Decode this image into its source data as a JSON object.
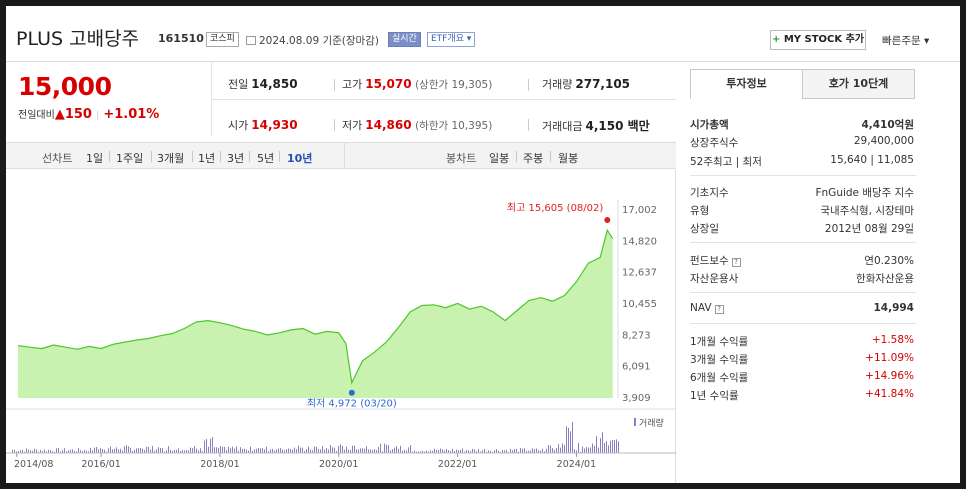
{
  "header": {
    "title": "PLUS 고배당주",
    "code": "161510",
    "market_tag": "코스피",
    "date": "2024.08.09",
    "basis": "기준(장마감)",
    "realtime_tag": "실시간",
    "etf_tag": "ETF개요 ▾",
    "mystock_label": "MY STOCK 추가",
    "quick_order": "빠른주문 ▾"
  },
  "price": {
    "current": "15,000",
    "change_label": "전일대비",
    "change_arrow": "▲",
    "change_value": "150",
    "change_pct": "+1.01%"
  },
  "quotes": {
    "prev_close_label": "전일",
    "prev_close": "14,850",
    "high_label": "고가",
    "high": "15,070",
    "upper_limit": "(상한가 19,305)",
    "volume_label": "거래량",
    "volume": "277,105",
    "open_label": "시가",
    "open": "14,930",
    "low_label": "저가",
    "low": "14,860",
    "lower_limit": "(하한가 10,395)",
    "turnover_label": "거래대금",
    "turnover": "4,150 백만"
  },
  "periods": {
    "line_label": "선차트",
    "line_items": [
      "1일",
      "1주일",
      "3개월",
      "1년",
      "3년",
      "5년",
      "10년"
    ],
    "active": "10년",
    "candle_label": "봉차트",
    "candle_items": [
      "일봉",
      "주봉",
      "월봉"
    ]
  },
  "chart_data": {
    "type": "area",
    "series": [
      {
        "values": [
          [
            2014.6,
            7550
          ],
          [
            2014.8,
            7450
          ],
          [
            2015.0,
            7350
          ],
          [
            2015.2,
            7600
          ],
          [
            2015.4,
            7450
          ],
          [
            2015.6,
            7300
          ],
          [
            2015.8,
            7500
          ],
          [
            2016.0,
            7350
          ],
          [
            2016.2,
            7650
          ],
          [
            2016.4,
            7800
          ],
          [
            2016.6,
            7950
          ],
          [
            2016.8,
            8050
          ],
          [
            2017.0,
            8250
          ],
          [
            2017.2,
            8400
          ],
          [
            2017.4,
            8750
          ],
          [
            2017.6,
            9200
          ],
          [
            2017.8,
            9300
          ],
          [
            2018.0,
            9150
          ],
          [
            2018.2,
            8950
          ],
          [
            2018.4,
            8700
          ],
          [
            2018.6,
            8550
          ],
          [
            2018.8,
            8300
          ],
          [
            2019.0,
            8450
          ],
          [
            2019.2,
            8650
          ],
          [
            2019.4,
            8750
          ],
          [
            2019.6,
            8350
          ],
          [
            2019.8,
            8550
          ],
          [
            2020.0,
            8450
          ],
          [
            2020.12,
            7700
          ],
          [
            2020.22,
            4972
          ],
          [
            2020.4,
            6500
          ],
          [
            2020.6,
            7100
          ],
          [
            2020.8,
            7800
          ],
          [
            2021.0,
            8800
          ],
          [
            2021.2,
            9900
          ],
          [
            2021.4,
            10350
          ],
          [
            2021.6,
            10400
          ],
          [
            2021.8,
            10200
          ],
          [
            2022.0,
            10500
          ],
          [
            2022.2,
            10100
          ],
          [
            2022.4,
            10300
          ],
          [
            2022.6,
            9900
          ],
          [
            2022.8,
            9300
          ],
          [
            2023.0,
            10000
          ],
          [
            2023.2,
            10700
          ],
          [
            2023.4,
            10900
          ],
          [
            2023.6,
            10650
          ],
          [
            2023.8,
            11050
          ],
          [
            2024.0,
            12000
          ],
          [
            2024.2,
            13300
          ],
          [
            2024.4,
            13700
          ],
          [
            2024.52,
            15605
          ],
          [
            2024.61,
            15000
          ]
        ]
      }
    ],
    "x_ticks": [
      "2014/08",
      "2016/01",
      "2018/01",
      "2020/01",
      "2022/01",
      "2024/01"
    ],
    "x_tick_values": [
      2014.58,
      2016.0,
      2018.0,
      2020.0,
      2022.0,
      2024.0
    ],
    "y_ticks": [
      "17,002",
      "14,820",
      "12,637",
      "10,455",
      "8,273",
      "6,091",
      "3,909"
    ],
    "y_tick_values": [
      17002,
      14820,
      12637,
      10455,
      8273,
      6091,
      3909
    ],
    "ylim": [
      3909,
      17002
    ],
    "max_label": "최고 15,605 (08/02)",
    "min_label": "최저 4,972 (03/20)",
    "volume_legend": "거래량",
    "colors": {
      "line": "#4cc72a",
      "fill": "#c9f1b0",
      "max": "#e02020",
      "min": "#2a6bd6",
      "volume": "#8d7cc3"
    }
  },
  "panel": {
    "tab_info": "투자정보",
    "tab_orderbook": "호가 10단계",
    "rows1": [
      {
        "label": "시가총액",
        "value": "4,410억원"
      },
      {
        "label": "상장주식수",
        "value": "29,400,000"
      },
      {
        "label": "52주최고 | 최저",
        "value": "15,640 | 11,085"
      }
    ],
    "rows2": [
      {
        "label": "기초지수",
        "value": "FnGuide 배당주 지수"
      },
      {
        "label": "유형",
        "value": "국내주식형, 시장테마"
      },
      {
        "label": "상장일",
        "value": "2012년 08월 29일"
      }
    ],
    "rows3": [
      {
        "label": "펀드보수",
        "value": "연0.230%"
      },
      {
        "label": "자산운용사",
        "value": "한화자산운용"
      }
    ],
    "nav_label": "NAV",
    "nav_value": "14,994",
    "returns": [
      {
        "label": "1개월 수익률",
        "value": "+1.58%"
      },
      {
        "label": "3개월 수익률",
        "value": "+11.09%"
      },
      {
        "label": "6개월 수익률",
        "value": "+14.96%"
      },
      {
        "label": "1년 수익률",
        "value": "+41.84%"
      }
    ]
  }
}
